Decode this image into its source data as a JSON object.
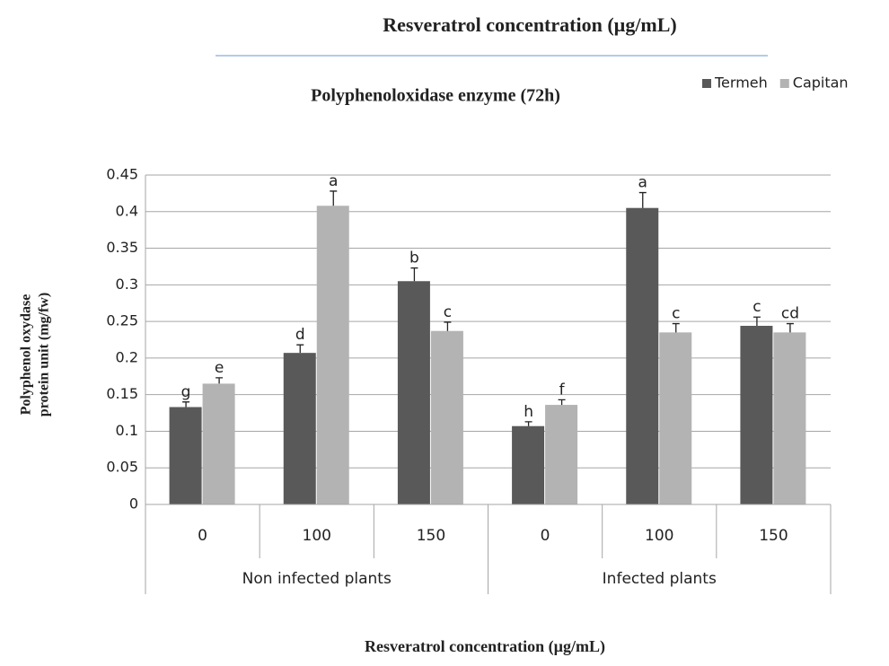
{
  "chart_data": {
    "type": "bar",
    "header": "Resveratrol concentration (µg/mL)",
    "title": "Polyphenoloxidase enzyme (72h)",
    "y_label": [
      "Polyphenol oxydase",
      "protein unit (mg/fw)"
    ],
    "x_label": "Resveratrol concentration (µg/mL)",
    "groups": [
      {
        "name": "Non infected plants",
        "categories": [
          "0",
          "100",
          "150"
        ]
      },
      {
        "name": "Infected plants",
        "categories": [
          "0",
          "100",
          "150"
        ]
      }
    ],
    "series": [
      {
        "name": "Termeh",
        "color": "#595959",
        "values": [
          0.133,
          0.207,
          0.305,
          0.107,
          0.405,
          0.244
        ],
        "errors": [
          0.007,
          0.011,
          0.018,
          0.006,
          0.021,
          0.012
        ],
        "labels": [
          "g",
          "d",
          "b",
          "h",
          "a",
          "c"
        ]
      },
      {
        "name": "Capitan",
        "color": "#b3b3b3",
        "values": [
          0.165,
          0.408,
          0.237,
          0.136,
          0.235,
          0.235
        ],
        "errors": [
          0.008,
          0.02,
          0.012,
          0.007,
          0.012,
          0.012
        ],
        "labels": [
          "e",
          "a",
          "c",
          "f",
          "c",
          "cd"
        ]
      }
    ],
    "ylim": [
      0,
      0.45
    ],
    "yticks": [
      0,
      0.05,
      0.1,
      0.15,
      0.2,
      0.25,
      0.3,
      0.35,
      0.4,
      0.45
    ],
    "grid": true,
    "legend": "top-right"
  }
}
